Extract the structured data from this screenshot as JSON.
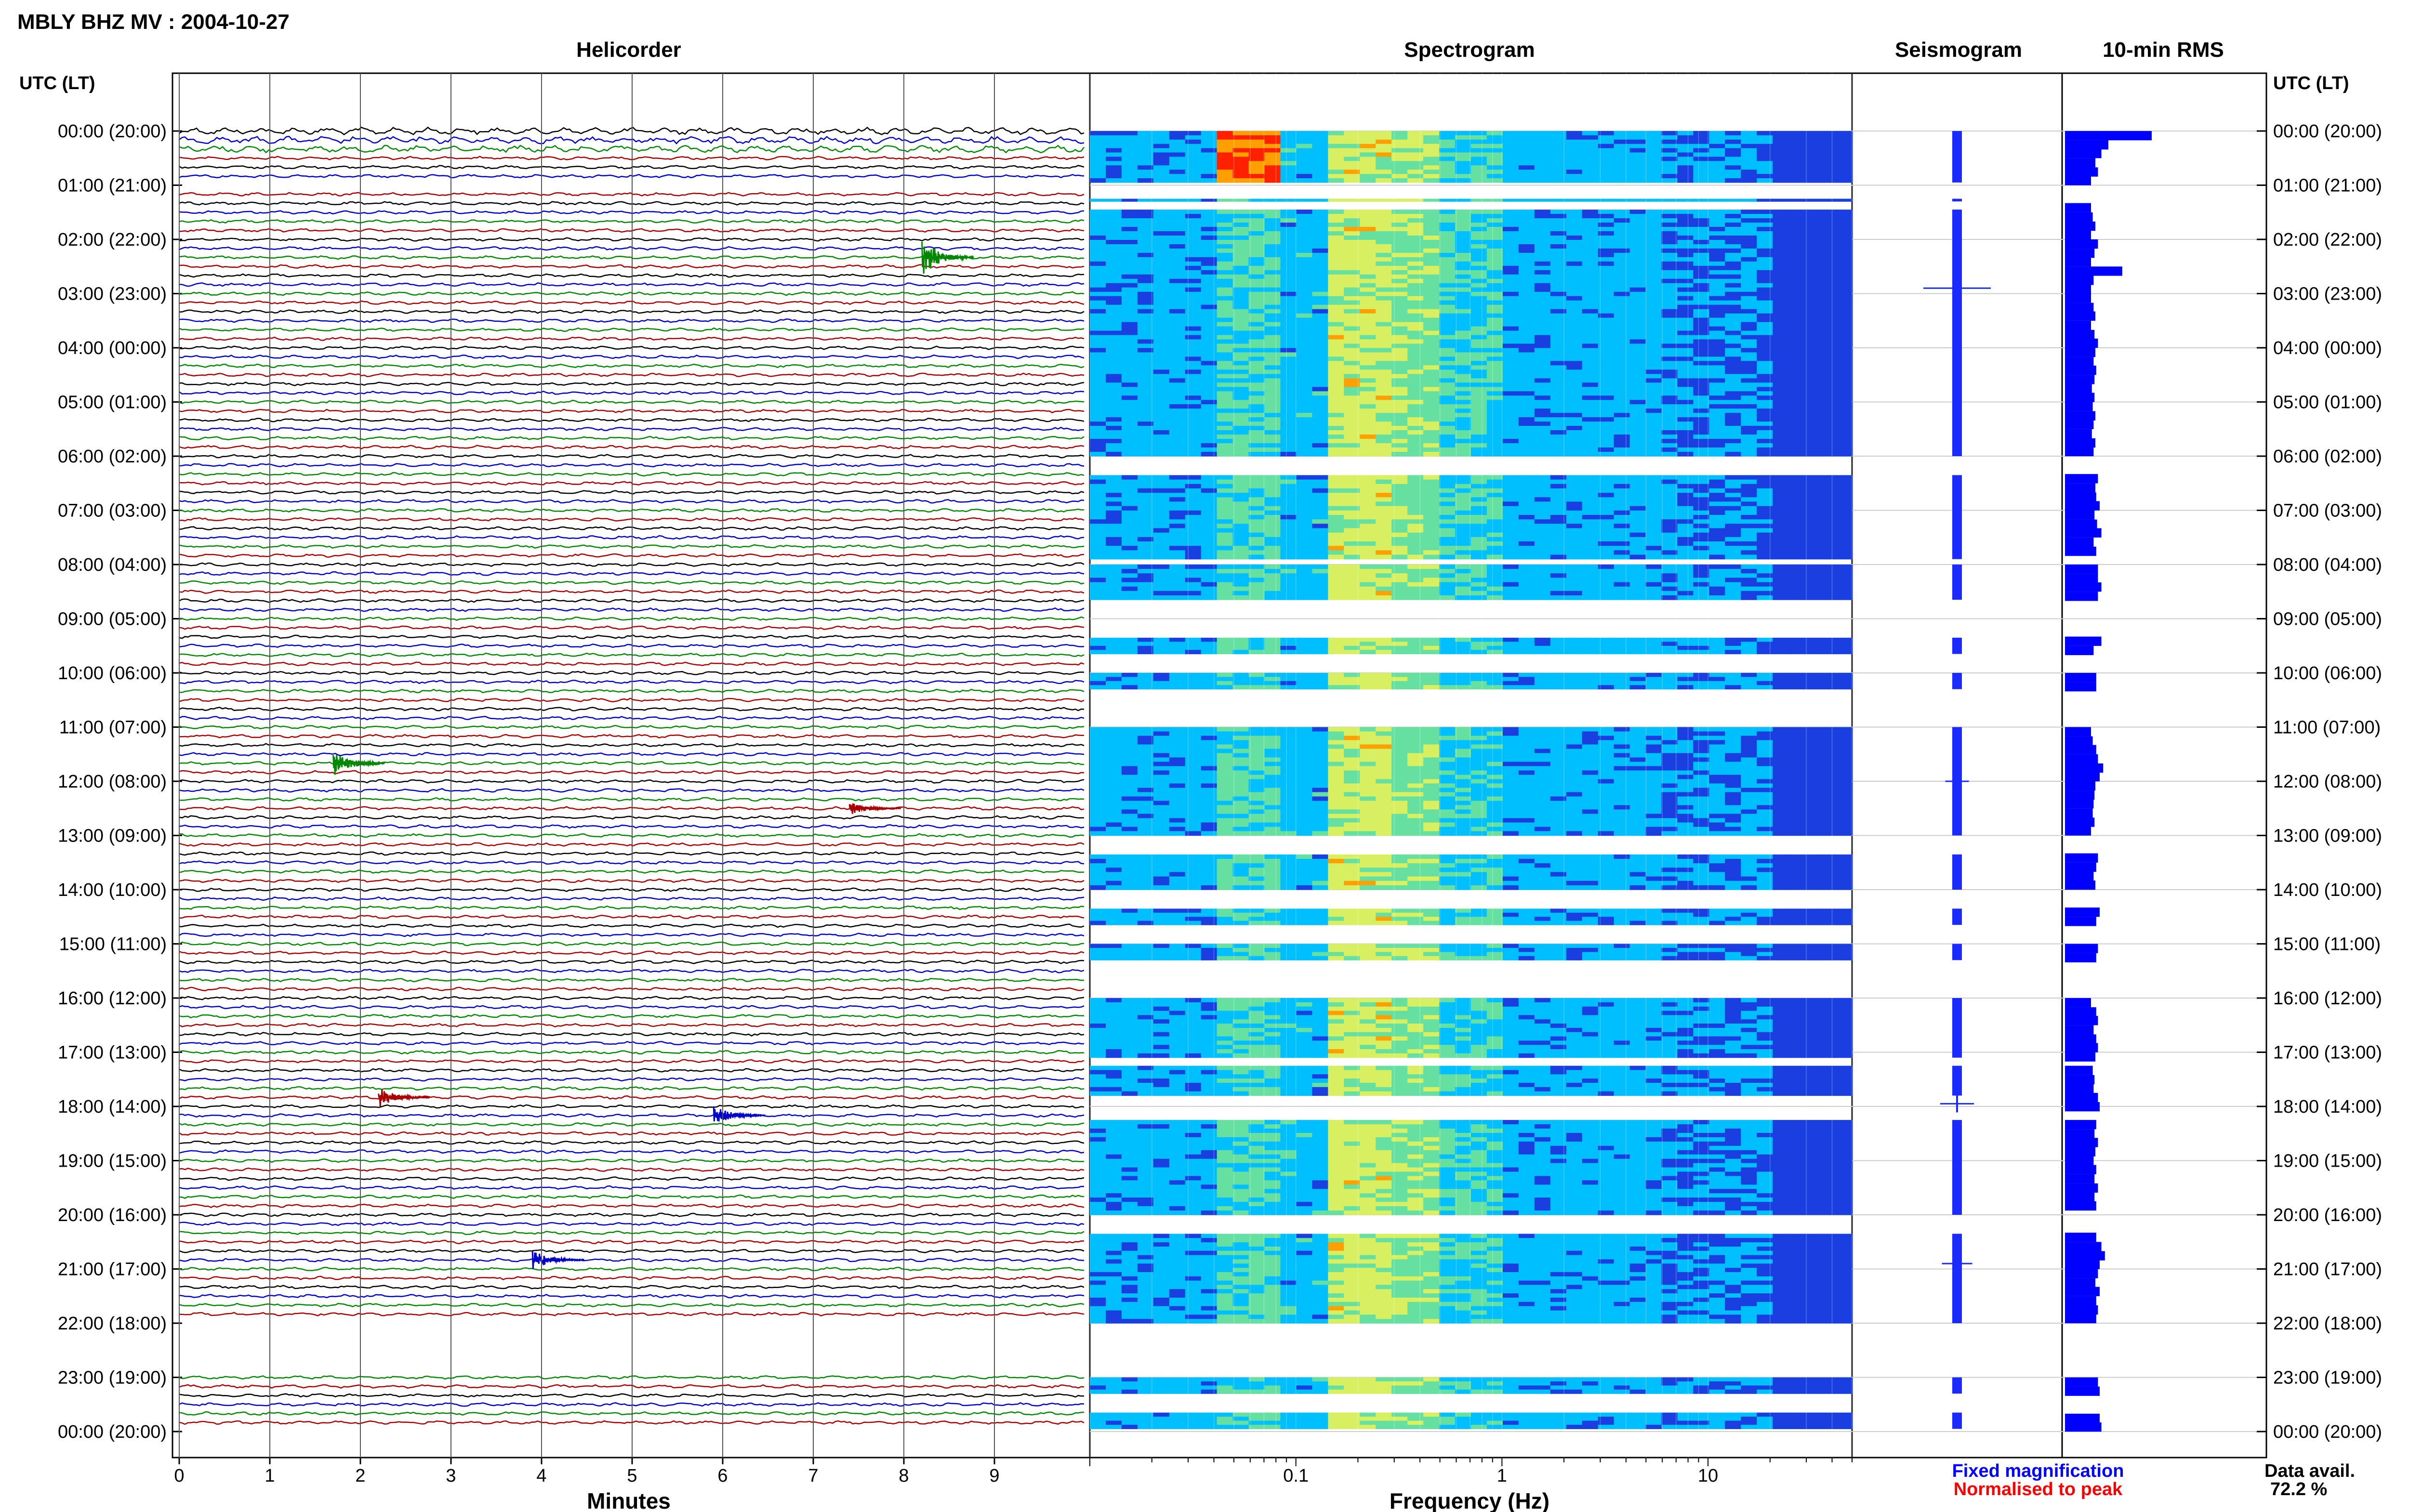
{
  "page": {
    "title": "MBLY BHZ MV : 2004-10-27",
    "utc_lt_label": "UTC (LT)"
  },
  "panels": {
    "helicorder": "Helicorder",
    "spectrogram": "Spectrogram",
    "seismogram": "Seismogram",
    "rms": "10-min RMS"
  },
  "axes": {
    "helicorder_xlabel": "Minutes",
    "spectrogram_xlabel": "Frequency (Hz)"
  },
  "legend": {
    "fixed": "Fixed magnification",
    "normalised": "Normalised to peak",
    "fixed_color": "#0000ff",
    "normalised_color": "#ff0000"
  },
  "availability": {
    "label": "Data avail.",
    "value": "72.2 %"
  },
  "colors": {
    "trace_cycle": [
      "#000000",
      "#0000cc",
      "#008800",
      "#aa0000"
    ],
    "rms_bar": "#0000ff",
    "grid": "#555555"
  },
  "chart_data": [
    {
      "type": "line",
      "name": "Helicorder",
      "x_ticks": [
        "0",
        "1",
        "2",
        "3",
        "4",
        "5",
        "6",
        "7",
        "8",
        "9"
      ],
      "xlim": [
        0,
        10
      ],
      "ylim_hours": [
        0,
        24
      ],
      "row_minutes": 10,
      "time_labels": [
        "00:00 (20:00)",
        "01:00 (21:00)",
        "02:00 (22:00)",
        "03:00 (23:00)",
        "04:00 (00:00)",
        "05:00 (01:00)",
        "06:00 (02:00)",
        "07:00 (03:00)",
        "08:00 (04:00)",
        "09:00 (05:00)",
        "10:00 (06:00)",
        "11:00 (07:00)",
        "12:00 (08:00)",
        "13:00 (09:00)",
        "14:00 (10:00)",
        "15:00 (11:00)",
        "16:00 (12:00)",
        "17:00 (13:00)",
        "18:00 (14:00)",
        "19:00 (15:00)",
        "20:00 (16:00)",
        "21:00 (17:00)",
        "22:00 (18:00)",
        "23:00 (19:00)",
        "00:00 (20:00)"
      ],
      "data_available_rows": [
        0,
        1,
        2,
        3,
        4,
        5,
        7,
        8,
        9,
        10,
        11,
        12,
        13,
        14,
        15,
        16,
        17,
        18,
        19,
        20,
        21,
        22,
        23,
        24,
        25,
        26,
        27,
        28,
        29,
        30,
        31,
        32,
        33,
        34,
        35,
        36,
        37,
        38,
        39,
        40,
        41,
        42,
        43,
        44,
        45,
        46,
        47,
        48,
        49,
        50,
        51,
        52,
        53,
        54,
        55,
        56,
        57,
        58,
        59,
        60,
        61,
        62,
        63,
        64,
        65,
        66,
        67,
        68,
        69,
        70,
        71,
        72,
        73,
        74,
        75,
        76,
        77,
        78,
        79,
        80,
        81,
        82,
        83,
        84,
        85,
        86,
        87,
        88,
        89,
        90,
        91,
        92,
        93,
        94,
        95,
        96,
        97,
        98,
        99,
        100,
        101,
        102,
        103,
        104,
        105,
        106,
        107,
        108,
        109,
        110,
        111,
        112,
        113,
        114,
        115,
        116,
        117,
        118,
        119,
        120,
        121,
        122,
        123,
        124,
        125,
        126,
        127,
        128,
        129,
        130,
        131,
        138,
        139,
        140,
        141,
        142,
        143
      ],
      "events": [
        {
          "hour": 2.3,
          "minute": 8.2,
          "amp": 3
        },
        {
          "hour": 11.6,
          "minute": 1.7,
          "amp": 2
        },
        {
          "hour": 12.5,
          "minute": 7.4,
          "amp": 1
        },
        {
          "hour": 17.9,
          "minute": 2.2,
          "amp": 1.5
        },
        {
          "hour": 18.1,
          "minute": 5.9,
          "amp": 1.5
        },
        {
          "hour": 20.8,
          "minute": 3.9,
          "amp": 1.5
        }
      ]
    },
    {
      "type": "heatmap",
      "name": "Spectrogram",
      "x_scale": "log",
      "xlim": [
        0.01,
        50
      ],
      "x_ticks": [
        "0.1",
        "1",
        "10"
      ],
      "segments": [
        [
          0,
          0.95
        ],
        [
          1.25,
          1.3
        ],
        [
          1.45,
          6.0
        ],
        [
          6.35,
          7.9
        ],
        [
          8.0,
          8.65
        ],
        [
          9.35,
          9.65
        ],
        [
          10.0,
          10.3
        ],
        [
          11.0,
          13.0
        ],
        [
          13.35,
          14.0
        ],
        [
          14.35,
          14.65
        ],
        [
          15.0,
          15.3
        ],
        [
          16.0,
          17.1
        ],
        [
          17.25,
          17.8
        ],
        [
          18.25,
          20.0
        ],
        [
          20.35,
          22.0
        ],
        [
          23.0,
          23.3
        ],
        [
          23.65,
          23.95
        ]
      ]
    },
    {
      "type": "line",
      "name": "Seismogram",
      "spikes": [
        {
          "hour": 2.9,
          "amp": 1.0
        },
        {
          "hour": 17.95,
          "amp": 0.5
        },
        {
          "hour": 20.9,
          "amp": 0.45
        },
        {
          "hour": 12.0,
          "amp": 0.35
        }
      ]
    },
    {
      "type": "bar",
      "name": "10-min RMS",
      "bars": [
        {
          "hour": 0.0,
          "value": 1.0
        },
        {
          "hour": 0.17,
          "value": 0.5
        },
        {
          "hour": 0.33,
          "value": 0.42
        },
        {
          "hour": 0.5,
          "value": 0.35
        },
        {
          "hour": 0.67,
          "value": 0.38
        },
        {
          "hour": 0.83,
          "value": 0.3
        },
        {
          "hour": 1.33,
          "value": 0.3
        },
        {
          "hour": 1.5,
          "value": 0.32
        },
        {
          "hour": 1.67,
          "value": 0.35
        },
        {
          "hour": 1.83,
          "value": 0.3
        },
        {
          "hour": 2.0,
          "value": 0.38
        },
        {
          "hour": 2.17,
          "value": 0.34
        },
        {
          "hour": 2.33,
          "value": 0.3
        },
        {
          "hour": 2.5,
          "value": 0.66
        },
        {
          "hour": 2.67,
          "value": 0.33
        },
        {
          "hour": 2.83,
          "value": 0.3
        },
        {
          "hour": 3.0,
          "value": 0.3
        },
        {
          "hour": 3.17,
          "value": 0.33
        },
        {
          "hour": 3.33,
          "value": 0.35
        },
        {
          "hour": 3.5,
          "value": 0.3
        },
        {
          "hour": 3.67,
          "value": 0.34
        },
        {
          "hour": 3.83,
          "value": 0.38
        },
        {
          "hour": 4.0,
          "value": 0.35
        },
        {
          "hour": 4.17,
          "value": 0.33
        },
        {
          "hour": 4.33,
          "value": 0.36
        },
        {
          "hour": 4.5,
          "value": 0.34
        },
        {
          "hour": 4.67,
          "value": 0.31
        },
        {
          "hour": 4.83,
          "value": 0.34
        },
        {
          "hour": 5.0,
          "value": 0.32
        },
        {
          "hour": 5.17,
          "value": 0.35
        },
        {
          "hour": 5.33,
          "value": 0.33
        },
        {
          "hour": 5.5,
          "value": 0.31
        },
        {
          "hour": 5.67,
          "value": 0.35
        },
        {
          "hour": 5.83,
          "value": 0.33
        },
        {
          "hour": 6.33,
          "value": 0.38
        },
        {
          "hour": 6.5,
          "value": 0.35
        },
        {
          "hour": 6.67,
          "value": 0.36
        },
        {
          "hour": 6.83,
          "value": 0.4
        },
        {
          "hour": 7.0,
          "value": 0.34
        },
        {
          "hour": 7.17,
          "value": 0.37
        },
        {
          "hour": 7.33,
          "value": 0.42
        },
        {
          "hour": 7.5,
          "value": 0.33
        },
        {
          "hour": 7.67,
          "value": 0.36
        },
        {
          "hour": 8.0,
          "value": 0.38
        },
        {
          "hour": 8.17,
          "value": 0.38
        },
        {
          "hour": 8.33,
          "value": 0.42
        },
        {
          "hour": 8.5,
          "value": 0.38
        },
        {
          "hour": 9.33,
          "value": 0.42
        },
        {
          "hour": 9.5,
          "value": 0.33
        },
        {
          "hour": 10.0,
          "value": 0.36
        },
        {
          "hour": 10.17,
          "value": 0.36
        },
        {
          "hour": 11.0,
          "value": 0.3
        },
        {
          "hour": 11.17,
          "value": 0.32
        },
        {
          "hour": 11.33,
          "value": 0.36
        },
        {
          "hour": 11.5,
          "value": 0.38
        },
        {
          "hour": 11.67,
          "value": 0.44
        },
        {
          "hour": 11.83,
          "value": 0.4
        },
        {
          "hour": 12.0,
          "value": 0.35
        },
        {
          "hour": 12.17,
          "value": 0.34
        },
        {
          "hour": 12.33,
          "value": 0.33
        },
        {
          "hour": 12.5,
          "value": 0.32
        },
        {
          "hour": 12.67,
          "value": 0.34
        },
        {
          "hour": 12.83,
          "value": 0.3
        },
        {
          "hour": 13.33,
          "value": 0.38
        },
        {
          "hour": 13.5,
          "value": 0.36
        },
        {
          "hour": 13.67,
          "value": 0.33
        },
        {
          "hour": 13.83,
          "value": 0.35
        },
        {
          "hour": 14.33,
          "value": 0.4
        },
        {
          "hour": 14.5,
          "value": 0.36
        },
        {
          "hour": 15.0,
          "value": 0.38
        },
        {
          "hour": 15.17,
          "value": 0.36
        },
        {
          "hour": 16.0,
          "value": 0.3
        },
        {
          "hour": 16.17,
          "value": 0.36
        },
        {
          "hour": 16.33,
          "value": 0.38
        },
        {
          "hour": 16.5,
          "value": 0.33
        },
        {
          "hour": 16.67,
          "value": 0.36
        },
        {
          "hour": 16.83,
          "value": 0.38
        },
        {
          "hour": 17.0,
          "value": 0.35
        },
        {
          "hour": 17.25,
          "value": 0.32
        },
        {
          "hour": 17.42,
          "value": 0.34
        },
        {
          "hour": 17.58,
          "value": 0.33
        },
        {
          "hour": 17.75,
          "value": 0.38
        },
        {
          "hour": 17.92,
          "value": 0.4
        },
        {
          "hour": 18.25,
          "value": 0.36
        },
        {
          "hour": 18.42,
          "value": 0.34
        },
        {
          "hour": 18.58,
          "value": 0.38
        },
        {
          "hour": 18.75,
          "value": 0.35
        },
        {
          "hour": 18.92,
          "value": 0.33
        },
        {
          "hour": 19.08,
          "value": 0.36
        },
        {
          "hour": 19.25,
          "value": 0.34
        },
        {
          "hour": 19.42,
          "value": 0.38
        },
        {
          "hour": 19.58,
          "value": 0.34
        },
        {
          "hour": 19.75,
          "value": 0.36
        },
        {
          "hour": 20.33,
          "value": 0.36
        },
        {
          "hour": 20.5,
          "value": 0.42
        },
        {
          "hour": 20.67,
          "value": 0.46
        },
        {
          "hour": 20.83,
          "value": 0.4
        },
        {
          "hour": 21.0,
          "value": 0.38
        },
        {
          "hour": 21.17,
          "value": 0.35
        },
        {
          "hour": 21.33,
          "value": 0.4
        },
        {
          "hour": 21.5,
          "value": 0.36
        },
        {
          "hour": 21.67,
          "value": 0.38
        },
        {
          "hour": 21.83,
          "value": 0.36
        },
        {
          "hour": 23.0,
          "value": 0.38
        },
        {
          "hour": 23.17,
          "value": 0.4
        },
        {
          "hour": 23.67,
          "value": 0.4
        },
        {
          "hour": 23.83,
          "value": 0.42
        }
      ]
    }
  ]
}
